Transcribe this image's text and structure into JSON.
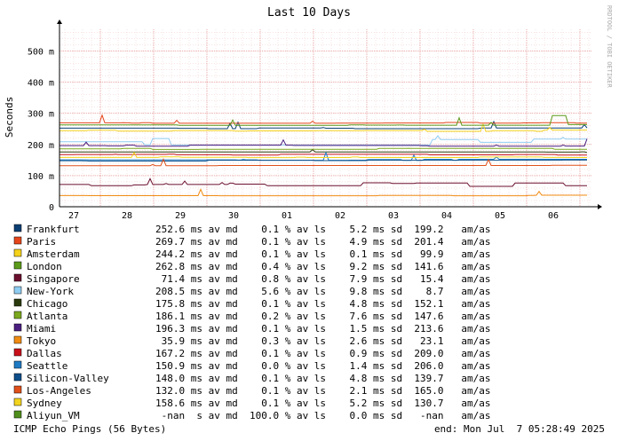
{
  "chart_data": {
    "type": "line",
    "title": "Last 10 Days",
    "ylabel": "Seconds",
    "watermark": "RRDTOOL / TOBI OETIKER",
    "ylim": [
      0,
      570
    ],
    "y_ticks": [
      {
        "value": 0,
        "label": "0"
      },
      {
        "value": 100,
        "label": "100 m"
      },
      {
        "value": 200,
        "label": "200 m"
      },
      {
        "value": 300,
        "label": "300 m"
      },
      {
        "value": 400,
        "label": "400 m"
      },
      {
        "value": 500,
        "label": "500 m"
      }
    ],
    "x_ticks": [
      "27",
      "28",
      "29",
      "30",
      "01",
      "02",
      "03",
      "04",
      "05",
      "06"
    ],
    "grid": true,
    "series": [
      {
        "name": "Frankfurt",
        "color": "#0b3f74",
        "baseline": 252.6,
        "text": "252.6 ms av md    0.1 % av ls    5.2 ms sd  199.2   am/as"
      },
      {
        "name": "Paris",
        "color": "#e5461c",
        "baseline": 269.7,
        "text": "269.7 ms av md    0.1 % av ls    4.9 ms sd  201.4   am/as"
      },
      {
        "name": "Amsterdam",
        "color": "#f5d21b",
        "baseline": 244.2,
        "text": "244.2 ms av md    0.1 % av ls    0.1 ms sd   99.9   am/as"
      },
      {
        "name": "London",
        "color": "#5b9a1a",
        "baseline": 262.8,
        "text": "262.8 ms av md    0.4 % av ls    9.2 ms sd  141.6   am/as"
      },
      {
        "name": "Singapore",
        "color": "#6b0f2e",
        "baseline": 71.4,
        "text": " 71.4 ms av md    0.8 % av ls    7.9 ms sd   15.4   am/as"
      },
      {
        "name": "New-York",
        "color": "#8fcdf2",
        "baseline": 208.5,
        "text": "208.5 ms av md    5.6 % av ls    9.8 ms sd    8.7   am/as"
      },
      {
        "name": "Chicago",
        "color": "#2a3a0c",
        "baseline": 175.8,
        "text": "175.8 ms av md    0.1 % av ls    4.8 ms sd  152.1   am/as"
      },
      {
        "name": "Atlanta",
        "color": "#7aa81e",
        "baseline": 186.1,
        "text": "186.1 ms av md    0.2 % av ls    7.6 ms sd  147.6   am/as"
      },
      {
        "name": "Miami",
        "color": "#4a1f80",
        "baseline": 196.3,
        "text": "196.3 ms av md    0.1 % av ls    1.5 ms sd  213.6   am/as"
      },
      {
        "name": "Tokyo",
        "color": "#f08c12",
        "baseline": 35.9,
        "text": " 35.9 ms av md    0.3 % av ls    2.6 ms sd   23.1   am/as"
      },
      {
        "name": "Dallas",
        "color": "#c8101a",
        "baseline": 167.2,
        "text": "167.2 ms av md    0.1 % av ls    0.9 ms sd  209.0   am/as"
      },
      {
        "name": "Seattle",
        "color": "#1f7ac4",
        "baseline": 150.9,
        "text": "150.9 ms av md    0.0 % av ls    1.4 ms sd  206.0   am/as"
      },
      {
        "name": "Silicon-Valley",
        "color": "#0d4f8a",
        "baseline": 148.0,
        "text": "148.0 ms av md    0.1 % av ls    4.8 ms sd  139.7   am/as"
      },
      {
        "name": "Los-Angeles",
        "color": "#e0501a",
        "baseline": 132.0,
        "text": "132.0 ms av md    0.1 % av ls    2.1 ms sd  165.0   am/as"
      },
      {
        "name": "Sydney",
        "color": "#f2d41e",
        "baseline": 158.6,
        "text": "158.6 ms av md    0.1 % av ls    5.2 ms sd  130.7   am/as"
      },
      {
        "name": "Aliyun_VM",
        "color": "#4f8e1c",
        "baseline": null,
        "text": " -nan  s av md  100.0 % av ls    0.0 ms sd   -nan   am/as"
      }
    ],
    "footer_left": "ICMP Echo Pings (56 Bytes)",
    "footer_right": "end: Mon Jul  7 05:28:49 2025"
  }
}
